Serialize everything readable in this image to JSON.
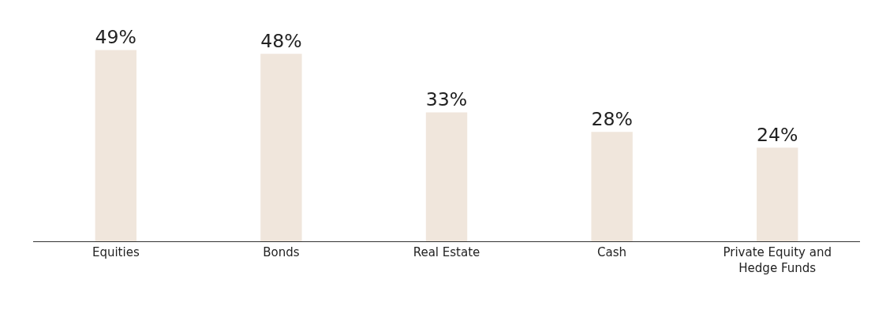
{
  "chart_data": {
    "type": "bar",
    "categories": [
      "Equities",
      "Bonds",
      "Real Estate",
      "Cash",
      "Private Equity and Hedge Funds"
    ],
    "values": [
      49,
      48,
      33,
      28,
      24
    ],
    "color": "#f0e6dc",
    "value_labels": [
      "49%",
      "48%",
      "33%",
      "28%",
      "24%"
    ],
    "grid": false,
    "tick_labels": "x"
  }
}
